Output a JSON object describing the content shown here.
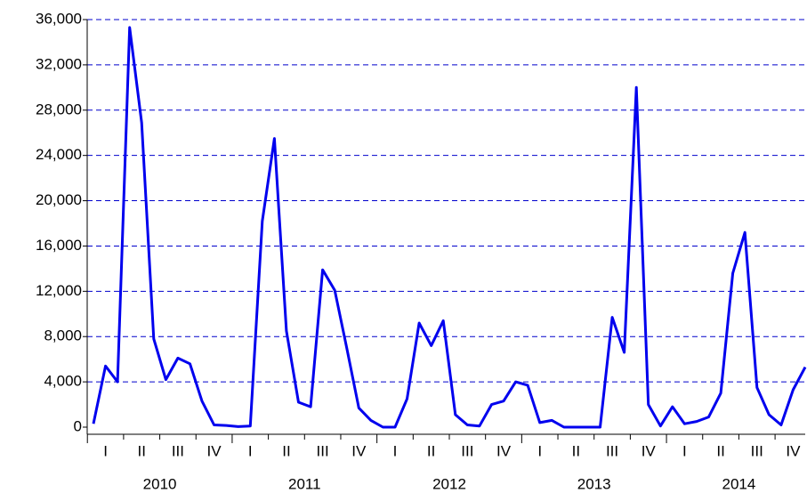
{
  "chart_data": {
    "type": "line",
    "categories": [
      null,
      "I",
      null,
      null,
      "II",
      null,
      null,
      "III",
      null,
      null,
      "IV",
      null,
      null,
      "I",
      null,
      null,
      "II",
      null,
      null,
      "III",
      null,
      null,
      "IV",
      null,
      null,
      "I",
      null,
      null,
      "II",
      null,
      null,
      "III",
      null,
      null,
      "IV",
      null,
      null,
      "I",
      null,
      null,
      "II",
      null,
      null,
      "III",
      null,
      null,
      "IV",
      null,
      null,
      "I",
      null,
      null,
      "II",
      null,
      null,
      "III",
      null,
      null,
      "IV",
      null
    ],
    "years": [
      "2010",
      "2011",
      "2012",
      "2013",
      "2014"
    ],
    "values": [
      300,
      5400,
      4000,
      35300,
      26900,
      7800,
      4200,
      6100,
      5600,
      2300,
      200,
      150,
      50,
      100,
      18200,
      25500,
      8500,
      2200,
      1800,
      13900,
      12100,
      7000,
      1700,
      600,
      0,
      0,
      2500,
      9200,
      7200,
      9400,
      1100,
      200,
      100,
      2000,
      2300,
      4000,
      3700,
      400,
      600,
      0,
      0,
      0,
      0,
      9700,
      6600,
      30000,
      2000,
      100,
      1800,
      300,
      500,
      900,
      3000,
      13600,
      17200,
      3500,
      1100,
      200,
      3300,
      5300
    ],
    "color": "#0000ee",
    "ylim": [
      0,
      36000
    ],
    "yticks": [
      0,
      {
        "value": 4000,
        "label": "4,000"
      },
      {
        "value": 8000,
        "label": "8,000"
      },
      {
        "value": 12000,
        "label": "12,000"
      },
      {
        "value": 16000,
        "label": "16,000"
      },
      {
        "value": 20000,
        "label": "20,000"
      },
      {
        "value": 24000,
        "label": "24,000"
      },
      {
        "value": 28000,
        "label": "28,000"
      },
      {
        "value": 32000,
        "label": "32,000"
      },
      {
        "value": 36000,
        "label": "36,000"
      }
    ],
    "grid": true
  }
}
